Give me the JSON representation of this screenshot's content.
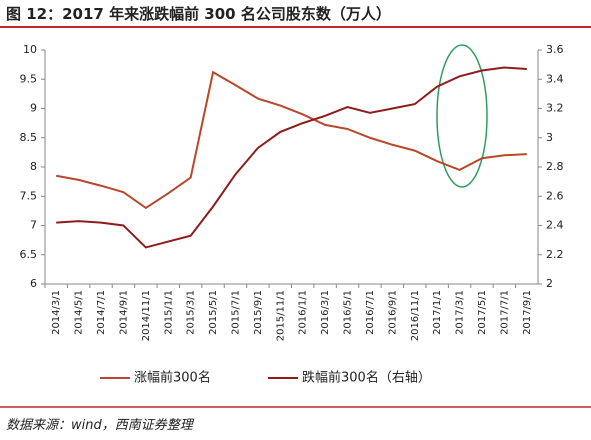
{
  "chart_data": {
    "type": "line",
    "title": "图 12：2017 年来涨跌幅前 300 名公司股东数（万人）",
    "source": "数据来源：wind，西南证券整理",
    "categories": [
      "2014/3/1",
      "2014/5/1",
      "2014/7/1",
      "2014/9/1",
      "2014/11/1",
      "2015/1/1",
      "2015/3/1",
      "2015/5/1",
      "2015/7/1",
      "2015/9/1",
      "2015/11/1",
      "2016/1/1",
      "2016/3/1",
      "2016/5/1",
      "2016/7/1",
      "2016/9/1",
      "2016/11/1",
      "2017/1/1",
      "2017/3/1",
      "2017/5/1",
      "2017/7/1",
      "2017/9/1"
    ],
    "series": [
      {
        "name": "涨幅前300名",
        "color": "#b8472c",
        "values": [
          7.85,
          7.78,
          7.68,
          7.57,
          7.3,
          7.55,
          7.82,
          9.62,
          9.4,
          9.17,
          9.05,
          8.9,
          8.72,
          8.65,
          8.5,
          8.38,
          8.28,
          8.1,
          7.95,
          8.15,
          8.2,
          8.22
        ]
      },
      {
        "name": "跌幅前300名（右轴）",
        "color": "#8e1c1c",
        "axis": "y2",
        "values": [
          2.42,
          2.43,
          2.42,
          2.4,
          2.25,
          2.29,
          2.33,
          2.53,
          2.75,
          2.93,
          3.04,
          3.1,
          3.15,
          3.21,
          3.17,
          3.2,
          3.23,
          3.35,
          3.42,
          3.46,
          3.48,
          3.47
        ]
      }
    ],
    "ylim": [
      6,
      10
    ],
    "yticks": [
      6,
      6.5,
      7,
      7.5,
      8,
      8.5,
      9,
      9.5,
      10
    ],
    "y2lim": [
      2,
      3.6
    ],
    "y2ticks": [
      2,
      2.2,
      2.4,
      2.6,
      2.8,
      3,
      3.2,
      3.4,
      3.6
    ],
    "grid": false
  }
}
